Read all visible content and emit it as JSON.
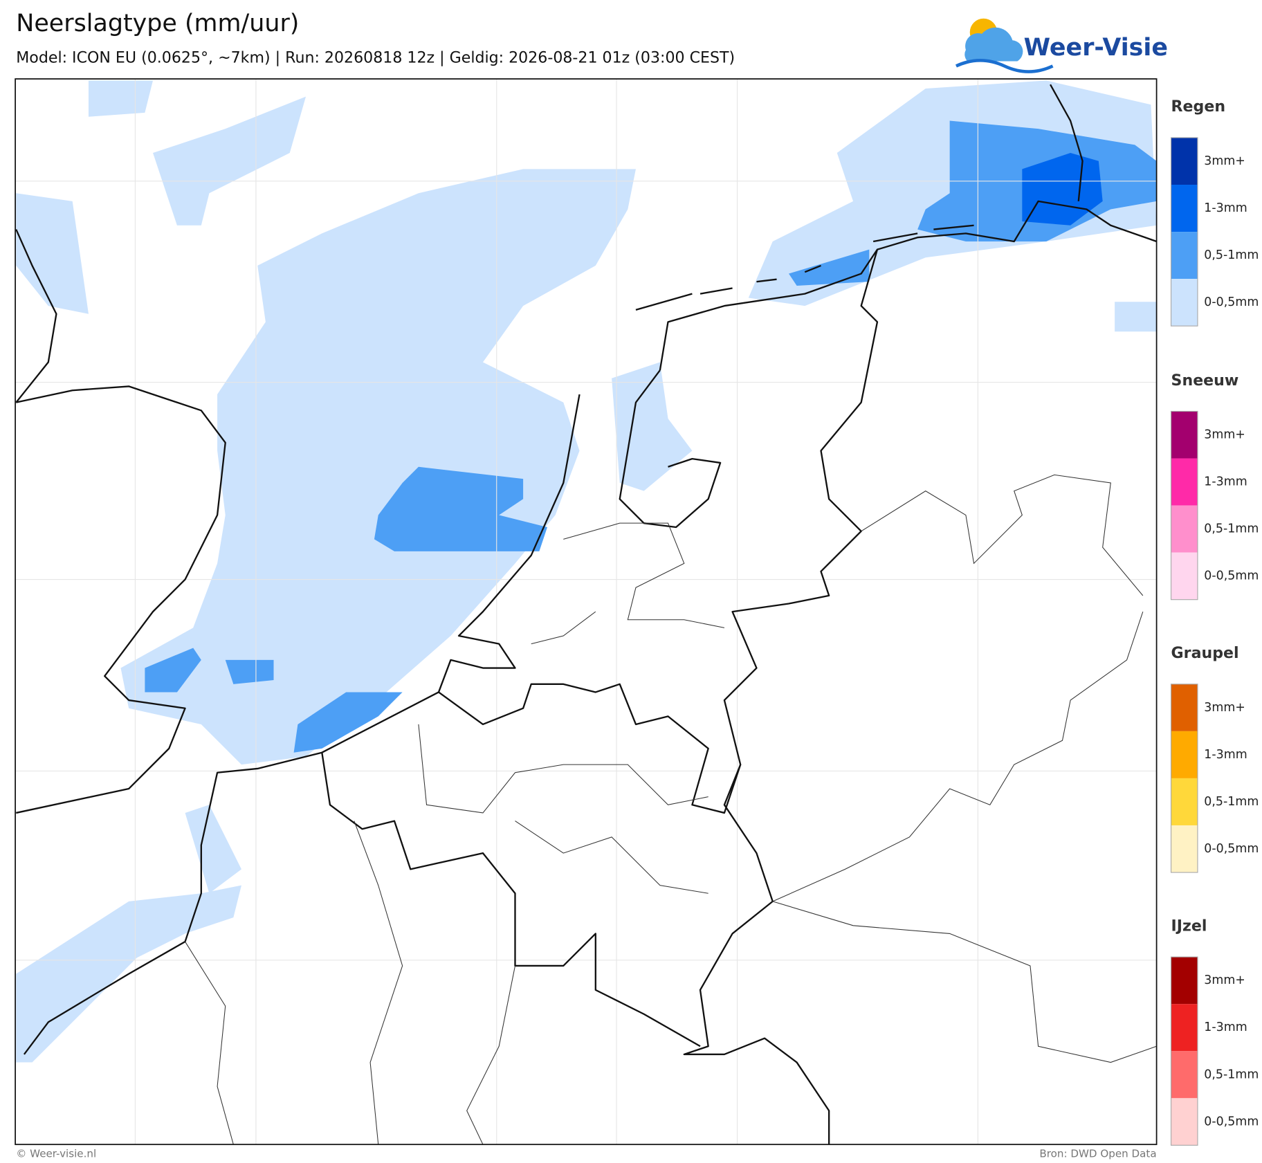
{
  "header": {
    "title": "Neerslagtype (mm/uur)",
    "subtitle": "Model: ICON EU (0.0625°, ~7km)  |  Run: 20260818 12z  |  Geldig: 2026-08-21 01z (03:00 CEST)"
  },
  "logo": {
    "text": "Weer-Visie"
  },
  "legend": [
    {
      "name": "Regen",
      "items": [
        {
          "label": "3mm+",
          "color": "#0033aa"
        },
        {
          "label": "1-3mm",
          "color": "#0066ee"
        },
        {
          "label": "0,5-1mm",
          "color": "#4d9ff5"
        },
        {
          "label": "0-0,5mm",
          "color": "#cce3fd"
        }
      ]
    },
    {
      "name": "Sneeuw",
      "items": [
        {
          "label": "3mm+",
          "color": "#a3006e"
        },
        {
          "label": "1-3mm",
          "color": "#ff2aa8"
        },
        {
          "label": "0,5-1mm",
          "color": "#ff8fcc"
        },
        {
          "label": "0-0,5mm",
          "color": "#ffd6ee"
        }
      ]
    },
    {
      "name": "Graupel",
      "items": [
        {
          "label": "3mm+",
          "color": "#e06000"
        },
        {
          "label": "1-3mm",
          "color": "#ffaa00"
        },
        {
          "label": "0,5-1mm",
          "color": "#ffd83a"
        },
        {
          "label": "0-0,5mm",
          "color": "#fff2c4"
        }
      ]
    },
    {
      "name": "IJzel",
      "items": [
        {
          "label": "3mm+",
          "color": "#a30000"
        },
        {
          "label": "1-3mm",
          "color": "#ee2222"
        },
        {
          "label": "0,5-1mm",
          "color": "#ff6b6b"
        },
        {
          "label": "0-0,5mm",
          "color": "#ffd1d1"
        }
      ]
    }
  ],
  "footer": {
    "left": "© Weer-visie.nl",
    "right": "Bron: DWD Open Data"
  }
}
